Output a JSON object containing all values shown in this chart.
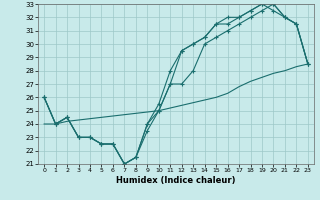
{
  "xlabel": "Humidex (Indice chaleur)",
  "bg_color": "#c8eaea",
  "grid_color": "#9dc8c8",
  "line_color": "#1a6e6e",
  "hours": [
    0,
    1,
    2,
    3,
    4,
    5,
    6,
    7,
    8,
    9,
    10,
    11,
    12,
    13,
    14,
    15,
    16,
    17,
    18,
    19,
    20,
    21,
    22,
    23
  ],
  "line1": [
    26,
    24,
    24.5,
    23,
    23,
    22.5,
    22.5,
    21,
    21.5,
    23.5,
    25,
    27,
    29.5,
    30,
    30.5,
    31.5,
    31.5,
    32,
    32.5,
    33,
    33,
    32,
    31.5,
    28.5
  ],
  "line2": [
    26,
    24,
    24.5,
    23,
    23,
    22.5,
    22.5,
    21,
    21.5,
    24,
    25.5,
    28,
    29.5,
    30,
    30.5,
    31.5,
    32,
    32,
    32.5,
    33,
    32.5,
    32,
    31.5,
    28.5
  ],
  "line3": [
    26,
    24,
    24.5,
    23,
    23,
    22.5,
    22.5,
    21,
    21.5,
    24,
    25,
    27,
    27,
    28,
    30,
    30.5,
    31,
    31.5,
    32,
    32.5,
    33,
    32,
    31.5,
    28.5
  ],
  "line_diag": [
    24,
    24,
    24.2,
    24.3,
    24.4,
    24.5,
    24.6,
    24.7,
    24.8,
    24.9,
    25,
    25.2,
    25.4,
    25.6,
    25.8,
    26,
    26.3,
    26.8,
    27.2,
    27.5,
    27.8,
    28,
    28.3,
    28.5
  ],
  "ymin": 21,
  "ymax": 33,
  "xmin": 0,
  "xmax": 23
}
